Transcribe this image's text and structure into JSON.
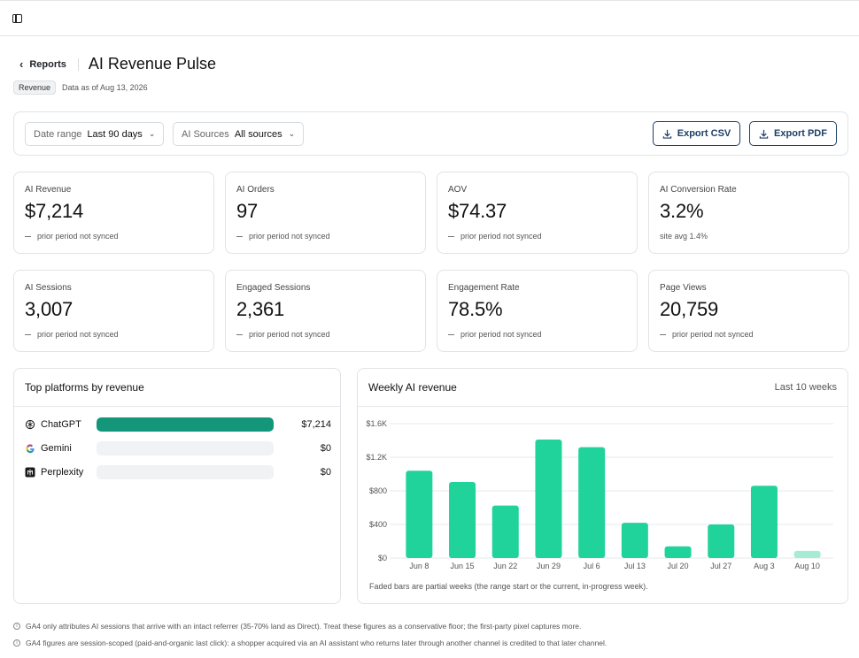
{
  "nav": {
    "back_label": "Reports"
  },
  "page": {
    "title": "AI Revenue Pulse",
    "badge": "Revenue",
    "as_of": "Data as of Aug 13, 2026"
  },
  "filters": {
    "date_range": {
      "label": "Date range",
      "value": "Last 90 days"
    },
    "ai_sources": {
      "label": "AI Sources",
      "value": "All sources"
    },
    "export_csv": "Export CSV",
    "export_pdf": "Export PDF"
  },
  "kpis": [
    {
      "label": "AI Revenue",
      "value": "$7,214",
      "sub": "prior period not synced",
      "dash": true
    },
    {
      "label": "AI Orders",
      "value": "97",
      "sub": "prior period not synced",
      "dash": true
    },
    {
      "label": "AOV",
      "value": "$74.37",
      "sub": "prior period not synced",
      "dash": true
    },
    {
      "label": "AI Conversion Rate",
      "value": "3.2%",
      "sub": "site avg 1.4%",
      "dash": false
    },
    {
      "label": "AI Sessions",
      "value": "3,007",
      "sub": "prior period not synced",
      "dash": true
    },
    {
      "label": "Engaged Sessions",
      "value": "2,361",
      "sub": "prior period not synced",
      "dash": true
    },
    {
      "label": "Engagement Rate",
      "value": "78.5%",
      "sub": "prior period not synced",
      "dash": true
    },
    {
      "label": "Page Views",
      "value": "20,759",
      "sub": "prior period not synced",
      "dash": true
    }
  ],
  "platforms": {
    "title": "Top platforms by revenue",
    "items": [
      {
        "name": "ChatGPT",
        "value": "$7,214",
        "share": 1.0,
        "icon": "chatgpt-icon"
      },
      {
        "name": "Gemini",
        "value": "$0",
        "share": 0.0,
        "icon": "gemini-icon"
      },
      {
        "name": "Perplexity",
        "value": "$0",
        "share": 0.0,
        "icon": "perplexity-icon"
      }
    ]
  },
  "weekly": {
    "title": "Weekly AI revenue",
    "range_label": "Last 10 weeks",
    "note": "Faded bars are partial weeks (the range start or the current, in-progress week)."
  },
  "chart_data": {
    "type": "bar",
    "title": "Weekly AI revenue",
    "categories": [
      "Jun 8",
      "Jun 15",
      "Jun 22",
      "Jun 29",
      "Jul 6",
      "Jul 13",
      "Jul 20",
      "Jul 27",
      "Aug 3",
      "Aug 10"
    ],
    "values": [
      1040,
      905,
      625,
      1410,
      1320,
      420,
      140,
      400,
      860,
      85
    ],
    "partial": [
      false,
      false,
      false,
      false,
      false,
      false,
      false,
      false,
      false,
      true
    ],
    "yticks": [
      "$0",
      "$400",
      "$800",
      "$1.2K",
      "$1.6K"
    ],
    "ytick_values": [
      0,
      400,
      800,
      1200,
      1600
    ],
    "ylim": [
      0,
      1600
    ],
    "grid": true,
    "colors": {
      "bar": "#20d39a",
      "partial": "#a6ecd2"
    }
  },
  "footnotes": [
    "GA4 only attributes AI sessions that arrive with an intact referrer (35-70% land as Direct). Treat these figures as a conservative floor; the first-party pixel captures more.",
    "GA4 figures are session-scoped (paid-and-organic last click): a shopper acquired via an AI assistant who returns later through another channel is credited to that later channel."
  ],
  "colors": {
    "accent": "#1d3f66",
    "bar": "#20d39a",
    "platform_bar": "#13967a"
  }
}
